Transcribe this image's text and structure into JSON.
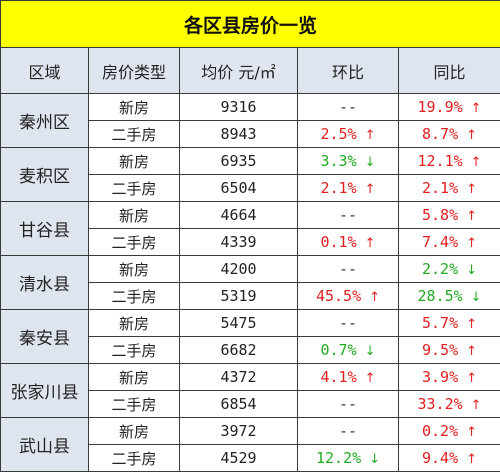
{
  "title": "各区县房价一览",
  "headers": {
    "district": "区域",
    "type": "房价类型",
    "price": "均价 元/㎡",
    "mom": "环比",
    "yoy": "同比"
  },
  "colors": {
    "up": "#e02020",
    "down": "#22aa22",
    "title_bg": "#ffff00",
    "header_bg": "#dfe5ee"
  },
  "districts": [
    {
      "name": "秦州区",
      "rows": [
        {
          "type": "新房",
          "price": "9316",
          "mom": {
            "text": "--",
            "dir": "flat",
            "arrow": ""
          },
          "yoy": {
            "text": "19.9%",
            "dir": "up",
            "arrow": "↑"
          }
        },
        {
          "type": "二手房",
          "price": "8943",
          "mom": {
            "text": "2.5%",
            "dir": "up",
            "arrow": "↑"
          },
          "yoy": {
            "text": "8.7%",
            "dir": "up",
            "arrow": "↑"
          }
        }
      ]
    },
    {
      "name": "麦积区",
      "rows": [
        {
          "type": "新房",
          "price": "6935",
          "mom": {
            "text": "3.3%",
            "dir": "down",
            "arrow": "↓"
          },
          "yoy": {
            "text": "12.1%",
            "dir": "up",
            "arrow": "↑"
          }
        },
        {
          "type": "二手房",
          "price": "6504",
          "mom": {
            "text": "2.1%",
            "dir": "up",
            "arrow": "↑"
          },
          "yoy": {
            "text": "2.1%",
            "dir": "up",
            "arrow": "↑"
          }
        }
      ]
    },
    {
      "name": "甘谷县",
      "rows": [
        {
          "type": "新房",
          "price": "4664",
          "mom": {
            "text": "--",
            "dir": "flat",
            "arrow": ""
          },
          "yoy": {
            "text": "5.8%",
            "dir": "up",
            "arrow": "↑"
          }
        },
        {
          "type": "二手房",
          "price": "4339",
          "mom": {
            "text": "0.1%",
            "dir": "up",
            "arrow": "↑"
          },
          "yoy": {
            "text": "7.4%",
            "dir": "up",
            "arrow": "↑"
          }
        }
      ]
    },
    {
      "name": "清水县",
      "rows": [
        {
          "type": "新房",
          "price": "4200",
          "mom": {
            "text": "--",
            "dir": "flat",
            "arrow": ""
          },
          "yoy": {
            "text": "2.2%",
            "dir": "down",
            "arrow": "↓"
          }
        },
        {
          "type": "二手房",
          "price": "5319",
          "mom": {
            "text": "45.5%",
            "dir": "up",
            "arrow": "↑"
          },
          "yoy": {
            "text": "28.5%",
            "dir": "down",
            "arrow": "↓"
          }
        }
      ]
    },
    {
      "name": "秦安县",
      "rows": [
        {
          "type": "新房",
          "price": "5475",
          "mom": {
            "text": "--",
            "dir": "flat",
            "arrow": ""
          },
          "yoy": {
            "text": "5.7%",
            "dir": "up",
            "arrow": "↑"
          }
        },
        {
          "type": "二手房",
          "price": "6682",
          "mom": {
            "text": "0.7%",
            "dir": "down",
            "arrow": "↓"
          },
          "yoy": {
            "text": "9.5%",
            "dir": "up",
            "arrow": "↑"
          }
        }
      ]
    },
    {
      "name": "张家川县",
      "rows": [
        {
          "type": "新房",
          "price": "4372",
          "mom": {
            "text": "4.1%",
            "dir": "up",
            "arrow": "↑"
          },
          "yoy": {
            "text": "3.9%",
            "dir": "up",
            "arrow": "↑"
          }
        },
        {
          "type": "二手房",
          "price": "6854",
          "mom": {
            "text": "--",
            "dir": "flat",
            "arrow": ""
          },
          "yoy": {
            "text": "33.2%",
            "dir": "up",
            "arrow": "↑"
          }
        }
      ]
    },
    {
      "name": "武山县",
      "rows": [
        {
          "type": "新房",
          "price": "3972",
          "mom": {
            "text": "--",
            "dir": "flat",
            "arrow": ""
          },
          "yoy": {
            "text": "0.2%",
            "dir": "up",
            "arrow": "↑"
          }
        },
        {
          "type": "二手房",
          "price": "4529",
          "mom": {
            "text": "12.2%",
            "dir": "down",
            "arrow": "↓"
          },
          "yoy": {
            "text": "9.4%",
            "dir": "up",
            "arrow": "↑"
          }
        }
      ]
    }
  ]
}
